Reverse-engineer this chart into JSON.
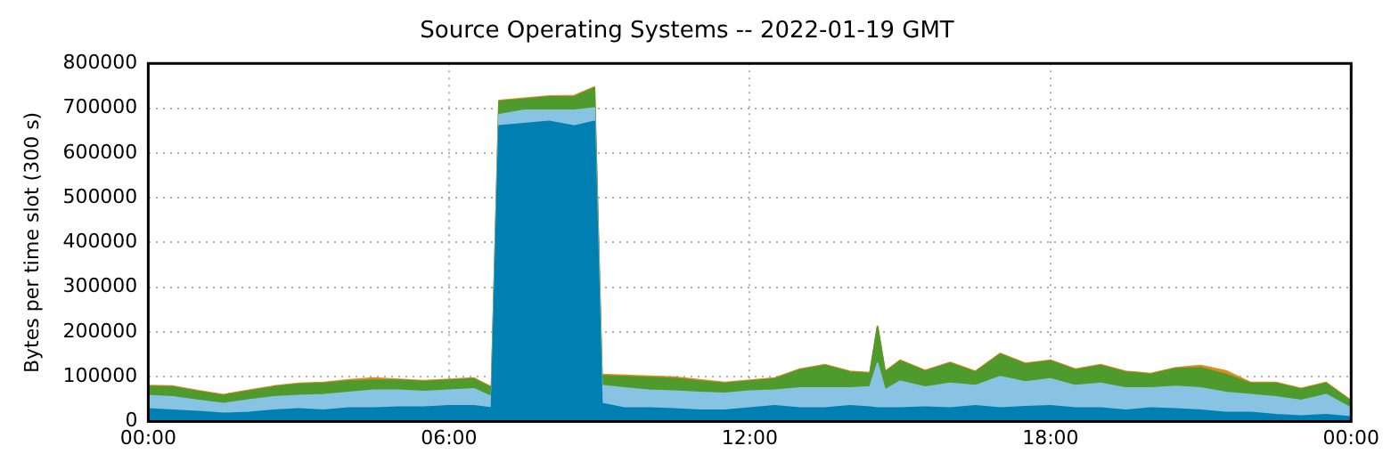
{
  "chart_data": {
    "type": "area",
    "stacked": true,
    "title": "Source Operating Systems -- 2022-01-19 GMT",
    "ylabel": "Bytes per time slot (300 s)",
    "x": [
      0,
      0.5,
      1,
      1.5,
      2,
      2.5,
      3,
      3.5,
      4,
      4.5,
      5,
      5.5,
      6,
      6.5,
      6.85,
      7,
      7.5,
      8,
      8.5,
      8.9,
      9.05,
      9.5,
      10,
      10.5,
      11,
      11.5,
      12,
      12.5,
      13,
      13.5,
      14,
      14.4,
      14.55,
      14.7,
      15,
      15.5,
      16,
      16.5,
      17,
      17.5,
      18,
      18.5,
      19,
      19.5,
      20,
      20.5,
      21,
      21.5,
      22,
      22.5,
      23,
      23.5,
      24
    ],
    "series": [
      {
        "color": "#0080b2",
        "values": [
          28000,
          25000,
          22000,
          18000,
          20000,
          25000,
          28000,
          25000,
          30000,
          30000,
          32000,
          32000,
          35000,
          35000,
          30000,
          660000,
          665000,
          670000,
          660000,
          670000,
          40000,
          30000,
          30000,
          28000,
          25000,
          25000,
          30000,
          35000,
          30000,
          30000,
          35000,
          32000,
          30000,
          30000,
          30000,
          32000,
          30000,
          35000,
          30000,
          33000,
          35000,
          30000,
          30000,
          25000,
          30000,
          28000,
          25000,
          20000,
          20000,
          15000,
          12000,
          15000,
          10000
        ]
      },
      {
        "color": "#88c3e3",
        "values": [
          30000,
          30000,
          25000,
          22000,
          28000,
          30000,
          30000,
          35000,
          35000,
          40000,
          38000,
          35000,
          35000,
          38000,
          25000,
          25000,
          30000,
          25000,
          35000,
          30000,
          40000,
          45000,
          40000,
          40000,
          40000,
          38000,
          38000,
          35000,
          45000,
          45000,
          40000,
          45000,
          100000,
          40000,
          60000,
          45000,
          55000,
          45000,
          70000,
          55000,
          60000,
          50000,
          55000,
          50000,
          45000,
          50000,
          50000,
          45000,
          40000,
          40000,
          35000,
          45000,
          20000
        ]
      },
      {
        "color": "#4f9a2c",
        "values": [
          20000,
          22000,
          20000,
          18000,
          20000,
          22000,
          25000,
          25000,
          25000,
          22000,
          22000,
          22000,
          22000,
          22000,
          20000,
          30000,
          25000,
          30000,
          30000,
          45000,
          22000,
          25000,
          28000,
          28000,
          25000,
          22000,
          22000,
          25000,
          40000,
          50000,
          35000,
          30000,
          80000,
          40000,
          45000,
          35000,
          45000,
          30000,
          50000,
          40000,
          40000,
          35000,
          40000,
          35000,
          30000,
          40000,
          45000,
          40000,
          25000,
          30000,
          25000,
          25000,
          15000
        ]
      },
      {
        "color": "#e08a1c",
        "values": [
          2000,
          2000,
          2000,
          2000,
          2000,
          2000,
          2000,
          2000,
          3000,
          5000,
          2000,
          2000,
          2000,
          2000,
          2000,
          2000,
          2000,
          2000,
          3000,
          2000,
          3000,
          3000,
          3000,
          3000,
          3000,
          2000,
          2000,
          2000,
          2000,
          2000,
          2000,
          2000,
          3000,
          2000,
          2000,
          2000,
          2000,
          2000,
          2000,
          2000,
          2000,
          2000,
          2000,
          2000,
          2000,
          2000,
          5000,
          8000,
          2000,
          2000,
          2000,
          2000,
          2000
        ]
      }
    ],
    "xlim": [
      0,
      24
    ],
    "xticks": [
      {
        "value": 0,
        "label": "00:00"
      },
      {
        "value": 6,
        "label": "06:00"
      },
      {
        "value": 12,
        "label": "12:00"
      },
      {
        "value": 18,
        "label": "18:00"
      },
      {
        "value": 24,
        "label": "00:00"
      }
    ],
    "ylim": [
      0,
      800000
    ],
    "yticks": [
      0,
      100000,
      200000,
      300000,
      400000,
      500000,
      600000,
      700000,
      800000
    ],
    "grid": true,
    "legend": false
  }
}
